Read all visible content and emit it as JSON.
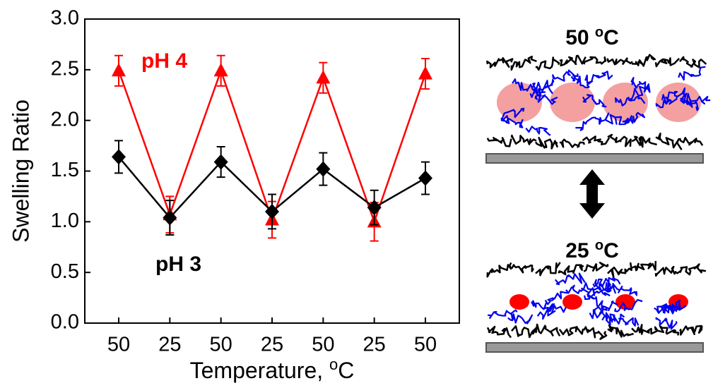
{
  "chart_data": {
    "type": "line",
    "ylabel": "Swelling Ratio",
    "xlabel": [
      "Temperature, ",
      "o",
      "C"
    ],
    "categories": [
      "50",
      "25",
      "50",
      "25",
      "50",
      "25",
      "50"
    ],
    "series": [
      {
        "name": "pH 4",
        "color": "#ff0000",
        "marker": "triangle",
        "values": [
          2.49,
          1.07,
          2.49,
          1.02,
          2.42,
          1.0,
          2.46
        ],
        "errors": [
          0.15,
          0.18,
          0.15,
          0.18,
          0.15,
          0.19,
          0.15
        ]
      },
      {
        "name": "pH 3",
        "color": "#000000",
        "marker": "diamond",
        "values": [
          1.64,
          1.04,
          1.59,
          1.1,
          1.52,
          1.14,
          1.43
        ],
        "errors": [
          0.16,
          0.17,
          0.15,
          0.17,
          0.16,
          0.17,
          0.16
        ]
      }
    ],
    "ylim": [
      0,
      3
    ],
    "yticks": [
      {
        "value": 0,
        "label": "0.0"
      },
      {
        "value": 0.5,
        "label": "0.5"
      },
      {
        "value": 1,
        "label": "1.0"
      },
      {
        "value": 1.5,
        "label": "1.5"
      },
      {
        "value": 2,
        "label": "2.0"
      },
      {
        "value": 2.5,
        "label": "2.5"
      },
      {
        "value": 3,
        "label": "3.0"
      }
    ]
  },
  "diagram": {
    "top_label": [
      "50 ",
      "o",
      "C"
    ],
    "bottom_label": [
      "25 ",
      "o",
      "C"
    ]
  }
}
